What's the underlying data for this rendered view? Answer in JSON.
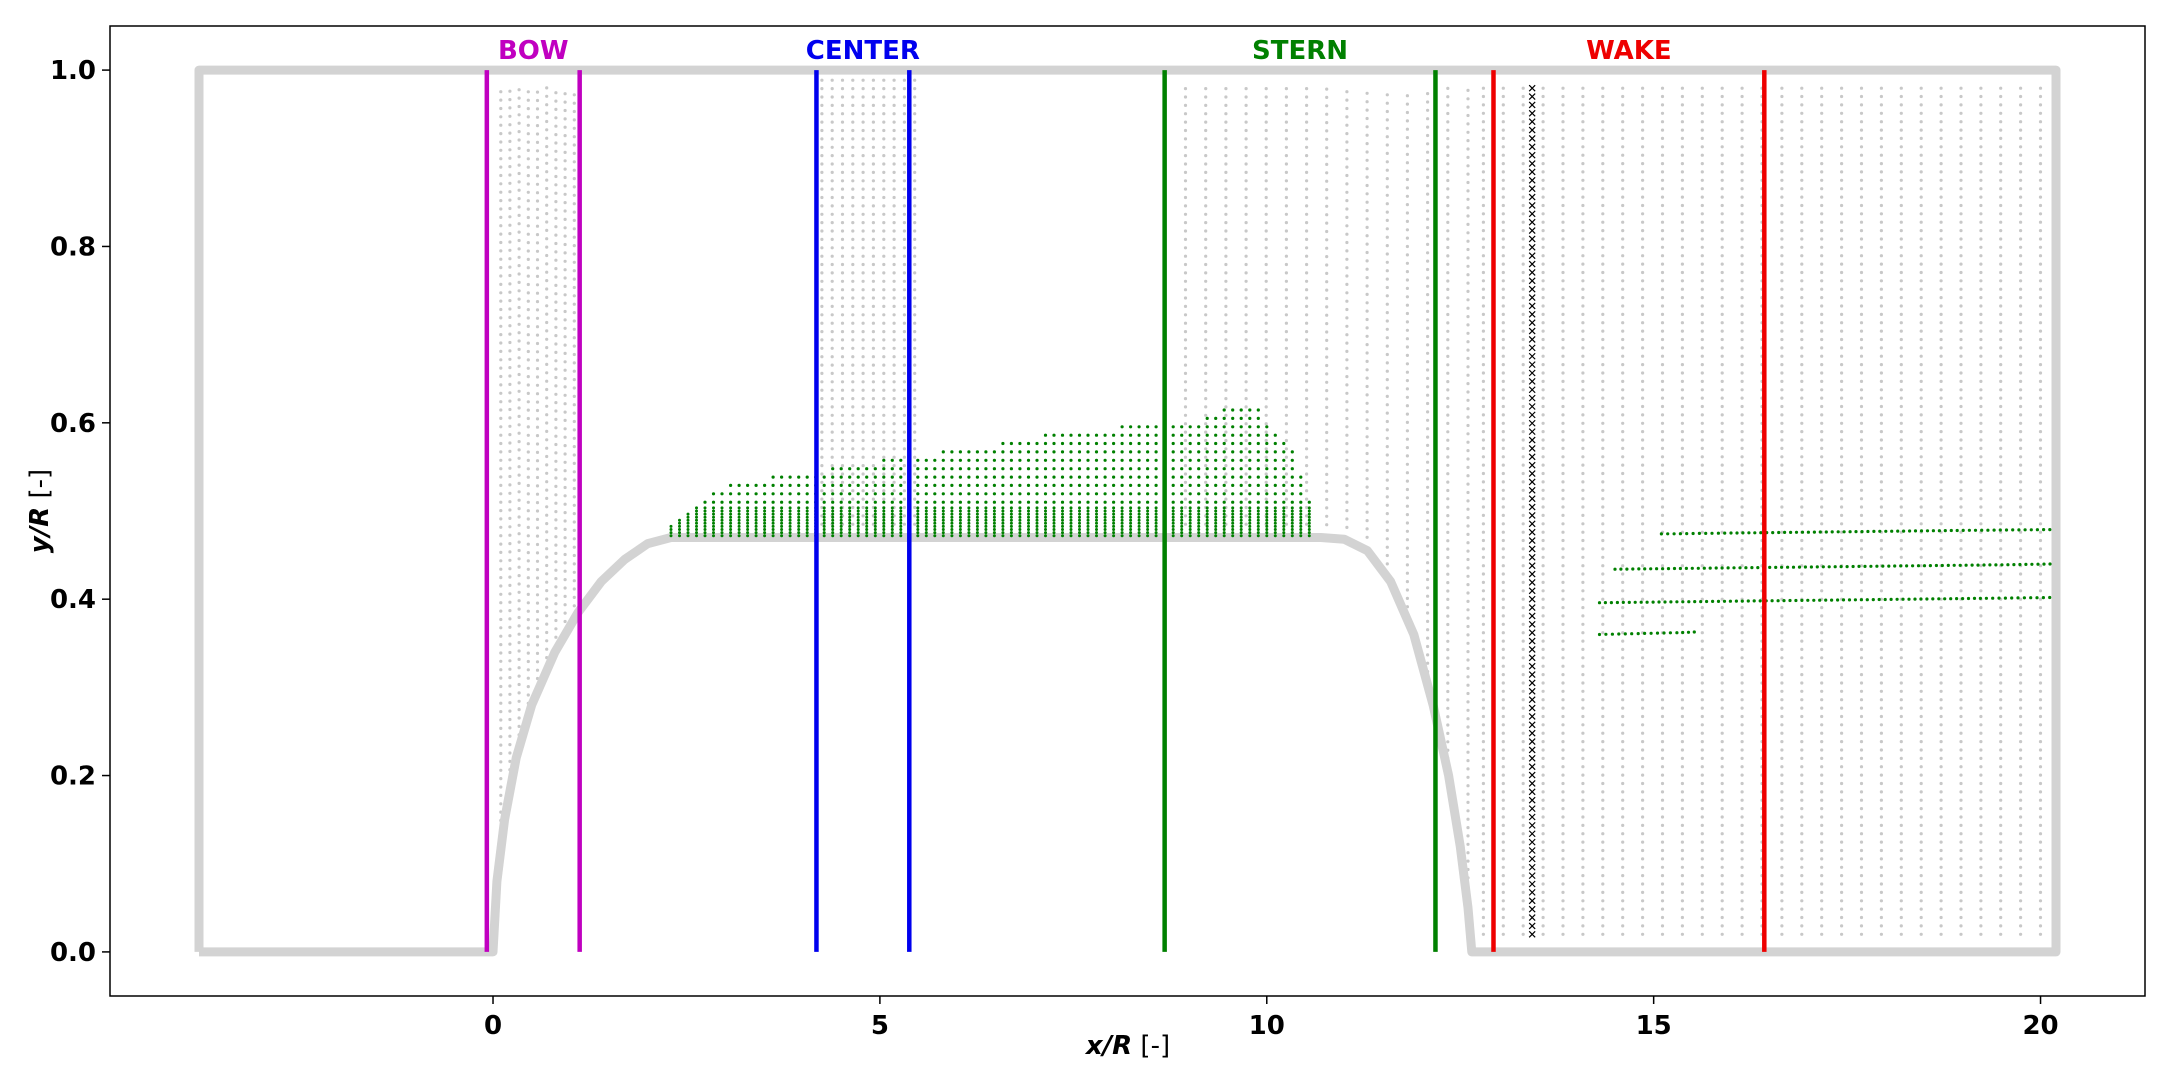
{
  "chart_data": {
    "type": "scatter",
    "title": "",
    "xlabel": {
      "var": "x/R",
      "unit": " [-]"
    },
    "ylabel": {
      "var": "y/R",
      "unit": " [-]"
    },
    "xlim": [
      -4.95,
      21.35
    ],
    "ylim": [
      -0.05,
      1.05
    ],
    "xticks": [
      0,
      5,
      10,
      15,
      20
    ],
    "xtick_labels": [
      "0",
      "5",
      "10",
      "15",
      "20"
    ],
    "yticks": [
      0.0,
      0.2,
      0.4,
      0.6,
      0.8,
      1.0
    ],
    "ytick_labels": [
      "0.0",
      "0.2",
      "0.4",
      "0.6",
      "0.8",
      "1.0"
    ],
    "grid": false,
    "domain_boundary": {
      "color": "#d3d3d3",
      "x": [
        -3.8,
        -3.8,
        20.2,
        20.2,
        12.65,
        12.6,
        12.5,
        12.35,
        12.15,
        11.9,
        11.6,
        11.3,
        11.0,
        10.7,
        2.3,
        2.0,
        1.7,
        1.4,
        1.1,
        0.8,
        0.5,
        0.3,
        0.15,
        0.05,
        0.0,
        -3.8
      ],
      "y": [
        0.0,
        1.0,
        1.0,
        0.0,
        0.0,
        0.05,
        0.12,
        0.2,
        0.28,
        0.36,
        0.42,
        0.455,
        0.468,
        0.47,
        0.47,
        0.463,
        0.445,
        0.42,
        0.385,
        0.34,
        0.28,
        0.22,
        0.15,
        0.08,
        0.0,
        0.0
      ]
    },
    "regions": [
      {
        "name": "BOW",
        "color": "#c000c0",
        "x": [
          -0.08,
          1.12
        ]
      },
      {
        "name": "CENTER",
        "color": "#0000ee",
        "x": [
          4.18,
          5.38
        ]
      },
      {
        "name": "STERN",
        "color": "#008000",
        "x": [
          8.68,
          12.18
        ]
      },
      {
        "name": "WAKE",
        "color": "#ee0000",
        "x": [
          12.93,
          16.43
        ]
      }
    ],
    "probe_line": {
      "x": 13.43,
      "y_range": [
        0.02,
        0.98
      ],
      "marker": "x",
      "color": "#000000"
    },
    "background_points": [
      {
        "x_range": [
          0.1,
          1.05
        ],
        "count": 9,
        "y_top": 0.98,
        "color": "#c8c8c8"
      },
      {
        "x_range": [
          4.25,
          5.45
        ],
        "count": 10,
        "y_top": 0.99,
        "color": "#c8c8c8"
      },
      {
        "x_range": [
          8.95,
          12.6
        ],
        "count": 15,
        "y_top": 0.98,
        "color": "#c8c8c8"
      },
      {
        "x_range": [
          12.8,
          20.0
        ],
        "count": 29,
        "y_top": 0.98,
        "color": "#c8c8c8"
      }
    ],
    "series": [
      {
        "name": "",
        "color": "#008000",
        "type": "top_envelope",
        "points": [
          [
            2.3,
            0.485
          ],
          [
            2.45,
            0.495
          ],
          [
            2.6,
            0.505
          ],
          [
            2.75,
            0.515
          ],
          [
            2.9,
            0.525
          ],
          [
            3.3,
            0.535
          ],
          [
            4.0,
            0.545
          ],
          [
            4.5,
            0.55
          ],
          [
            5.2,
            0.56
          ],
          [
            6.0,
            0.57
          ],
          [
            6.8,
            0.58
          ],
          [
            7.0,
            0.585
          ],
          [
            8.0,
            0.595
          ],
          [
            8.5,
            0.6
          ],
          [
            9.2,
            0.605
          ],
          [
            9.4,
            0.615
          ],
          [
            9.9,
            0.615
          ],
          [
            10.0,
            0.6
          ],
          [
            10.2,
            0.58
          ],
          [
            10.4,
            0.56
          ],
          [
            10.5,
            0.52
          ],
          [
            10.6,
            0.5
          ]
        ],
        "base_y": 0.47
      },
      {
        "name": "",
        "color": "#008000",
        "type": "line",
        "x": [
          15.1,
          16.0,
          17.0,
          18.0,
          19.0,
          20.2
        ],
        "y": [
          0.474,
          0.475,
          0.476,
          0.477,
          0.478,
          0.479
        ]
      },
      {
        "name": "",
        "color": "#008000",
        "type": "line",
        "x": [
          14.5,
          15.5,
          16.5,
          17.5,
          18.5,
          19.5,
          20.2
        ],
        "y": [
          0.434,
          0.435,
          0.436,
          0.437,
          0.438,
          0.439,
          0.44
        ]
      },
      {
        "name": "",
        "color": "#008000",
        "type": "line",
        "x": [
          14.3,
          15.3,
          16.3,
          17.3,
          18.3,
          19.3,
          20.2
        ],
        "y": [
          0.396,
          0.397,
          0.398,
          0.399,
          0.4,
          0.401,
          0.402
        ]
      },
      {
        "name": "",
        "color": "#008000",
        "type": "line",
        "x": [
          14.3,
          14.8,
          15.3,
          15.6
        ],
        "y": [
          0.36,
          0.361,
          0.362,
          0.363
        ]
      }
    ]
  }
}
